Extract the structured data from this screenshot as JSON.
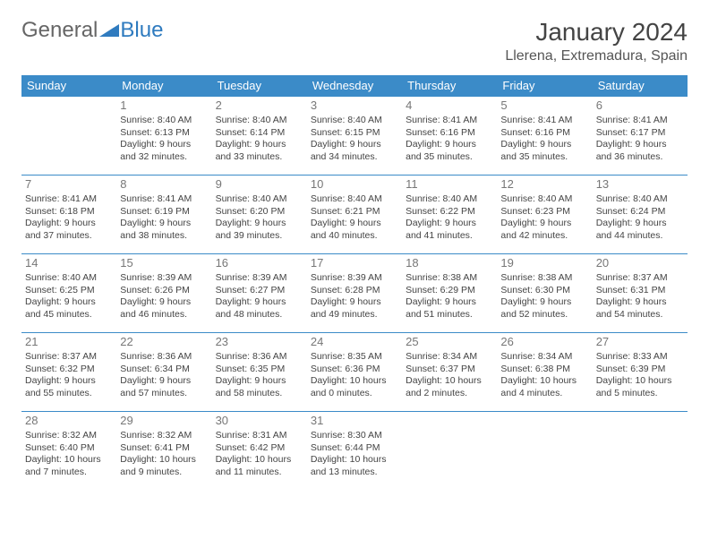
{
  "logo": {
    "text1": "General",
    "text2": "Blue"
  },
  "title": "January 2024",
  "location": "Llerena, Extremadura, Spain",
  "colors": {
    "header_bg": "#3b8bc8",
    "header_text": "#ffffff",
    "border": "#3b8bc8",
    "logo_gray": "#666666",
    "logo_blue": "#2f7bbf",
    "text": "#444444",
    "daynum": "#777777"
  },
  "weekdays": [
    "Sunday",
    "Monday",
    "Tuesday",
    "Wednesday",
    "Thursday",
    "Friday",
    "Saturday"
  ],
  "weeks": [
    [
      null,
      {
        "n": "1",
        "sr": "8:40 AM",
        "ss": "6:13 PM",
        "dl": "9 hours and 32 minutes."
      },
      {
        "n": "2",
        "sr": "8:40 AM",
        "ss": "6:14 PM",
        "dl": "9 hours and 33 minutes."
      },
      {
        "n": "3",
        "sr": "8:40 AM",
        "ss": "6:15 PM",
        "dl": "9 hours and 34 minutes."
      },
      {
        "n": "4",
        "sr": "8:41 AM",
        "ss": "6:16 PM",
        "dl": "9 hours and 35 minutes."
      },
      {
        "n": "5",
        "sr": "8:41 AM",
        "ss": "6:16 PM",
        "dl": "9 hours and 35 minutes."
      },
      {
        "n": "6",
        "sr": "8:41 AM",
        "ss": "6:17 PM",
        "dl": "9 hours and 36 minutes."
      }
    ],
    [
      {
        "n": "7",
        "sr": "8:41 AM",
        "ss": "6:18 PM",
        "dl": "9 hours and 37 minutes."
      },
      {
        "n": "8",
        "sr": "8:41 AM",
        "ss": "6:19 PM",
        "dl": "9 hours and 38 minutes."
      },
      {
        "n": "9",
        "sr": "8:40 AM",
        "ss": "6:20 PM",
        "dl": "9 hours and 39 minutes."
      },
      {
        "n": "10",
        "sr": "8:40 AM",
        "ss": "6:21 PM",
        "dl": "9 hours and 40 minutes."
      },
      {
        "n": "11",
        "sr": "8:40 AM",
        "ss": "6:22 PM",
        "dl": "9 hours and 41 minutes."
      },
      {
        "n": "12",
        "sr": "8:40 AM",
        "ss": "6:23 PM",
        "dl": "9 hours and 42 minutes."
      },
      {
        "n": "13",
        "sr": "8:40 AM",
        "ss": "6:24 PM",
        "dl": "9 hours and 44 minutes."
      }
    ],
    [
      {
        "n": "14",
        "sr": "8:40 AM",
        "ss": "6:25 PM",
        "dl": "9 hours and 45 minutes."
      },
      {
        "n": "15",
        "sr": "8:39 AM",
        "ss": "6:26 PM",
        "dl": "9 hours and 46 minutes."
      },
      {
        "n": "16",
        "sr": "8:39 AM",
        "ss": "6:27 PM",
        "dl": "9 hours and 48 minutes."
      },
      {
        "n": "17",
        "sr": "8:39 AM",
        "ss": "6:28 PM",
        "dl": "9 hours and 49 minutes."
      },
      {
        "n": "18",
        "sr": "8:38 AM",
        "ss": "6:29 PM",
        "dl": "9 hours and 51 minutes."
      },
      {
        "n": "19",
        "sr": "8:38 AM",
        "ss": "6:30 PM",
        "dl": "9 hours and 52 minutes."
      },
      {
        "n": "20",
        "sr": "8:37 AM",
        "ss": "6:31 PM",
        "dl": "9 hours and 54 minutes."
      }
    ],
    [
      {
        "n": "21",
        "sr": "8:37 AM",
        "ss": "6:32 PM",
        "dl": "9 hours and 55 minutes."
      },
      {
        "n": "22",
        "sr": "8:36 AM",
        "ss": "6:34 PM",
        "dl": "9 hours and 57 minutes."
      },
      {
        "n": "23",
        "sr": "8:36 AM",
        "ss": "6:35 PM",
        "dl": "9 hours and 58 minutes."
      },
      {
        "n": "24",
        "sr": "8:35 AM",
        "ss": "6:36 PM",
        "dl": "10 hours and 0 minutes."
      },
      {
        "n": "25",
        "sr": "8:34 AM",
        "ss": "6:37 PM",
        "dl": "10 hours and 2 minutes."
      },
      {
        "n": "26",
        "sr": "8:34 AM",
        "ss": "6:38 PM",
        "dl": "10 hours and 4 minutes."
      },
      {
        "n": "27",
        "sr": "8:33 AM",
        "ss": "6:39 PM",
        "dl": "10 hours and 5 minutes."
      }
    ],
    [
      {
        "n": "28",
        "sr": "8:32 AM",
        "ss": "6:40 PM",
        "dl": "10 hours and 7 minutes."
      },
      {
        "n": "29",
        "sr": "8:32 AM",
        "ss": "6:41 PM",
        "dl": "10 hours and 9 minutes."
      },
      {
        "n": "30",
        "sr": "8:31 AM",
        "ss": "6:42 PM",
        "dl": "10 hours and 11 minutes."
      },
      {
        "n": "31",
        "sr": "8:30 AM",
        "ss": "6:44 PM",
        "dl": "10 hours and 13 minutes."
      },
      null,
      null,
      null
    ]
  ],
  "labels": {
    "sunrise": "Sunrise: ",
    "sunset": "Sunset: ",
    "daylight": "Daylight: "
  }
}
